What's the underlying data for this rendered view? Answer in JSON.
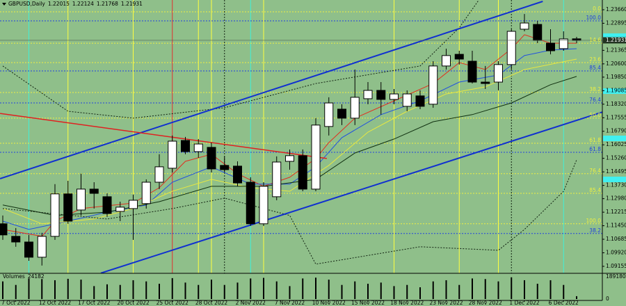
{
  "chart_data": {
    "type": "candlestick",
    "title": "GBPUSD,Daily",
    "categories": [
      null,
      "7 Oct 2022",
      null,
      null,
      "12 Oct 2022",
      null,
      null,
      "17 Oct 2022",
      null,
      null,
      "20 Oct 2022",
      null,
      null,
      "25 Oct 2022",
      null,
      null,
      "28 Oct 2022",
      null,
      null,
      "2 Nov 2022",
      null,
      null,
      "7 Nov 2022",
      null,
      null,
      "10 Nov 2022",
      null,
      null,
      "15 Nov 2022",
      null,
      null,
      "18 Nov 2022",
      null,
      null,
      "23 Nov 2022",
      null,
      null,
      "28 Nov 2022",
      null,
      null,
      "1 Dec 2022",
      null,
      null,
      "6 Dec 2022",
      null
    ],
    "open": [
      1.1156,
      1.1085,
      1.1053,
      1.0967,
      1.1085,
      1.1325,
      1.1234,
      1.1352,
      1.1309,
      1.1226,
      1.1242,
      1.127,
      1.1391,
      1.147,
      1.1627,
      1.1564,
      1.1588,
      1.1486,
      1.1482,
      1.1391,
      1.1156,
      1.1309,
      1.1509,
      1.1541,
      1.1352,
      1.1706,
      1.1804,
      1.1753,
      1.1863,
      1.191,
      1.1859,
      1.182,
      1.1879,
      1.1832,
      1.2048,
      1.2114,
      1.2075,
      1.1957,
      1.1957,
      1.2056,
      1.2256,
      1.2283,
      1.2177,
      1.2146,
      1.22015
    ],
    "high": [
      1.1203,
      1.1132,
      1.1093,
      1.1105,
      1.138,
      1.1399,
      1.1439,
      1.1391,
      1.1328,
      1.1281,
      1.1321,
      1.1407,
      1.1549,
      1.1655,
      1.1647,
      1.1635,
      1.1615,
      1.1537,
      1.1509,
      1.1419,
      1.1391,
      1.1537,
      1.1576,
      1.1576,
      1.1753,
      1.1871,
      1.1832,
      1.2028,
      1.1957,
      1.1957,
      1.1918,
      1.191,
      1.191,
      1.2075,
      1.2146,
      1.2134,
      1.2134,
      1.2048,
      1.2075,
      1.2256,
      1.2342,
      1.2303,
      1.2256,
      1.2244,
      1.22124
    ],
    "low": [
      1.1065,
      1.1026,
      1.0947,
      1.092,
      1.1065,
      1.1156,
      1.1203,
      1.1242,
      1.1195,
      1.1171,
      1.1065,
      1.1242,
      1.1352,
      1.1446,
      1.1549,
      1.1529,
      1.1446,
      1.1446,
      1.1368,
      1.1144,
      1.1144,
      1.1289,
      1.1462,
      1.134,
      1.134,
      1.1655,
      1.1714,
      1.1714,
      1.1832,
      1.1773,
      1.1832,
      1.1792,
      1.1804,
      1.1812,
      1.2028,
      1.2056,
      1.1949,
      1.1918,
      1.191,
      1.2028,
      1.2244,
      1.2177,
      1.2114,
      1.2134,
      1.21768
    ],
    "close": [
      1.1093,
      1.1053,
      1.0967,
      1.1085,
      1.1325,
      1.1171,
      1.1352,
      1.1328,
      1.1214,
      1.125,
      1.1289,
      1.1391,
      1.1478,
      1.1623,
      1.1564,
      1.1607,
      1.1466,
      1.1462,
      1.1387,
      1.1156,
      1.1368,
      1.1505,
      1.1541,
      1.1352,
      1.1714,
      1.1839,
      1.1753,
      1.1871,
      1.191,
      1.1859,
      1.189,
      1.189,
      1.182,
      1.2048,
      1.2107,
      1.2087,
      1.1957,
      1.1949,
      1.2056,
      1.2244,
      1.2291,
      1.2193,
      1.2134,
      1.2201,
      1.21931
    ],
    "ylim": [
      1.0876,
      1.2421
    ],
    "yticks": [
      {
        "value": 1.2366,
        "label": "1.23660"
      },
      {
        "value": 1.22895,
        "label": "1.22895"
      },
      {
        "value": 1.21365,
        "label": "1.21365"
      },
      {
        "value": 1.206,
        "label": "1.20600"
      },
      {
        "value": 1.1985,
        "label": "1.19850"
      },
      {
        "value": 1.19085,
        "label": "1.19085"
      },
      {
        "value": 1.1832,
        "label": "1.18320"
      },
      {
        "value": 1.17555,
        "label": "1.17555"
      },
      {
        "value": 1.1679,
        "label": "1.16790"
      },
      {
        "value": 1.16025,
        "label": "1.16025"
      },
      {
        "value": 1.1526,
        "label": "1.15260"
      },
      {
        "value": 1.14495,
        "label": "1.14495"
      },
      {
        "value": 1.1373,
        "label": "1.13730"
      },
      {
        "value": 1.1298,
        "label": "1.12980"
      },
      {
        "value": 1.12215,
        "label": "1.12215"
      },
      {
        "value": 1.1145,
        "label": "1.11450"
      },
      {
        "value": 1.10685,
        "label": "1.10685"
      },
      {
        "value": 1.0992,
        "label": "1.09920"
      },
      {
        "value": 1.09155,
        "label": "1.09155"
      }
    ],
    "fib_levels": [
      {
        "label": "0.0",
        "price": 1.2354,
        "color": "#f0f040"
      },
      {
        "label": "14.6",
        "price": 1.2177,
        "color": "#f0f040"
      },
      {
        "label": "23.6",
        "price": 1.2067,
        "color": "#f0f040"
      },
      {
        "label": "38.2",
        "price": 1.1898,
        "color": "#f0f040"
      },
      {
        "label": "50.0",
        "price": 1.1753,
        "color": "#f0f040"
      },
      {
        "label": "61.8",
        "price": 1.1611,
        "color": "#f0f040"
      },
      {
        "label": "76.4",
        "price": 1.1439,
        "color": "#f0f040"
      },
      {
        "label": "85.4",
        "price": 1.1328,
        "color": "#f0f040"
      },
      {
        "label": "100.0",
        "price": 1.1156,
        "color": "#f0f040"
      },
      {
        "label": "100.0",
        "price": 1.2303,
        "color": "#2040e0"
      },
      {
        "label": "85.4",
        "price": 1.202,
        "color": "#2040e0"
      },
      {
        "label": "76.4",
        "price": 1.1839,
        "color": "#2040e0"
      },
      {
        "label": "61.8",
        "price": 1.156,
        "color": "#2040e0"
      },
      {
        "label": "38.2",
        "price": 1.1101,
        "color": "#2040e0"
      }
    ],
    "trend_lines": [
      {
        "color": "#1030d0",
        "width": 2,
        "x": [
          -0.21,
          41.4
        ],
        "values": [
          1.1411,
          1.2413
        ]
      },
      {
        "color": "#1030d0",
        "width": 2,
        "x": [
          7.52,
          46
        ],
        "values": [
          1.0877,
          1.1788
        ]
      },
      {
        "color": "#e02020",
        "width": 1.5,
        "x": [
          -0.21,
          24.85
        ],
        "values": [
          1.178,
          1.1525
        ]
      }
    ],
    "indicators": [
      {
        "color": "#e03020",
        "dash": false,
        "x": [
          0,
          3,
          4,
          6,
          10,
          12,
          14,
          16,
          18,
          20,
          22,
          24,
          25,
          27,
          30,
          33,
          35,
          37,
          39,
          40,
          42,
          44
        ],
        "values": [
          1.1124,
          1.1085,
          1.1171,
          1.1242,
          1.1273,
          1.136,
          1.1509,
          1.1549,
          1.1439,
          1.1368,
          1.1419,
          1.1525,
          1.1615,
          1.1753,
          1.1851,
          1.1949,
          1.2067,
          1.2028,
          1.2146,
          1.2225,
          1.2177,
          1.2177
        ]
      },
      {
        "color": "#2050e0",
        "dash": false,
        "x": [
          0,
          2,
          5,
          8,
          11,
          13,
          16,
          19,
          22,
          24,
          26,
          29,
          32,
          35,
          38,
          40,
          42,
          44
        ],
        "values": [
          1.1171,
          1.1124,
          1.1171,
          1.1222,
          1.1262,
          1.1391,
          1.1478,
          1.138,
          1.138,
          1.1478,
          1.1643,
          1.1773,
          1.1851,
          1.1957,
          1.1997,
          1.2107,
          1.2138,
          1.2146
        ]
      },
      {
        "color": "#e8e840",
        "dash": false,
        "x": [
          0,
          3,
          7,
          10,
          13,
          16,
          19,
          22,
          25,
          28,
          31,
          34,
          37,
          40,
          44
        ],
        "values": [
          1.1242,
          1.1156,
          1.1183,
          1.1242,
          1.134,
          1.1407,
          1.136,
          1.134,
          1.1486,
          1.1674,
          1.1792,
          1.189,
          1.193,
          1.2028,
          1.2087
        ]
      },
      {
        "color": "#103010",
        "dash": false,
        "x": [
          0,
          4,
          8,
          12,
          16,
          20,
          24,
          27,
          30,
          33,
          36,
          39,
          42,
          44
        ],
        "values": [
          1.1262,
          1.1203,
          1.1222,
          1.1281,
          1.1368,
          1.1368,
          1.1407,
          1.1556,
          1.1635,
          1.1733,
          1.1773,
          1.1839,
          1.1942,
          1.1989
        ]
      },
      {
        "color": "#102010",
        "dash": true,
        "x": [
          0,
          5,
          10,
          17,
          24,
          32,
          35,
          36.5
        ],
        "values": [
          1.2048,
          1.1792,
          1.1753,
          1.1812,
          1.1949,
          1.2048,
          1.2264,
          1.2421
        ]
      },
      {
        "color": "#102010",
        "dash": true,
        "x": [
          0,
          8,
          13,
          17,
          22,
          24,
          32,
          38,
          40,
          43,
          44
        ],
        "values": [
          1.1242,
          1.1183,
          1.1242,
          1.1301,
          1.1203,
          1.0928,
          1.1026,
          1.1006,
          1.1124,
          1.134,
          1.1517
        ]
      }
    ],
    "cycle_lines": [
      {
        "x": 2,
        "color": "#40f0d8",
        "dash": false
      },
      {
        "x": 5,
        "color": "#ffff40",
        "dash": false
      },
      {
        "x": 10,
        "color": "#ffff40",
        "dash": false
      },
      {
        "x": 13,
        "color": "#e03030",
        "dash": false
      },
      {
        "x": 15,
        "color": "#ffff40",
        "dash": false
      },
      {
        "x": 16,
        "color": "#ffff40",
        "dash": false
      },
      {
        "x": 17,
        "color": "#102010",
        "dash": true
      },
      {
        "x": 19,
        "color": "#40f0d8",
        "dash": false
      },
      {
        "x": 20,
        "color": "#ffff40",
        "dash": false
      },
      {
        "x": 30,
        "color": "#ffff40",
        "dash": false
      },
      {
        "x": 35,
        "color": "#ffff40",
        "dash": false
      },
      {
        "x": 38,
        "color": "#ffff40",
        "dash": false
      },
      {
        "x": 39,
        "color": "#102010",
        "dash": true
      },
      {
        "x": 43,
        "color": "#40f0d8",
        "dash": false
      }
    ],
    "volume_label": "Volumes",
    "volumes": [
      150000,
      120000,
      175000,
      170000,
      160000,
      172000,
      165000,
      110000,
      125000,
      120000,
      160000,
      150000,
      130000,
      178000,
      140000,
      120000,
      165000,
      120000,
      140000,
      175000,
      180000,
      150000,
      110000,
      175000,
      182000,
      165000,
      120000,
      150000,
      130000,
      140000,
      110000,
      120000,
      100000,
      150000,
      160000,
      120000,
      175000,
      170000,
      150000,
      185000,
      160000,
      130000,
      160000,
      120000,
      24182
    ],
    "volume_ylim": [
      0,
      189180
    ],
    "volume_ticks": [
      0,
      189180
    ]
  }
}
